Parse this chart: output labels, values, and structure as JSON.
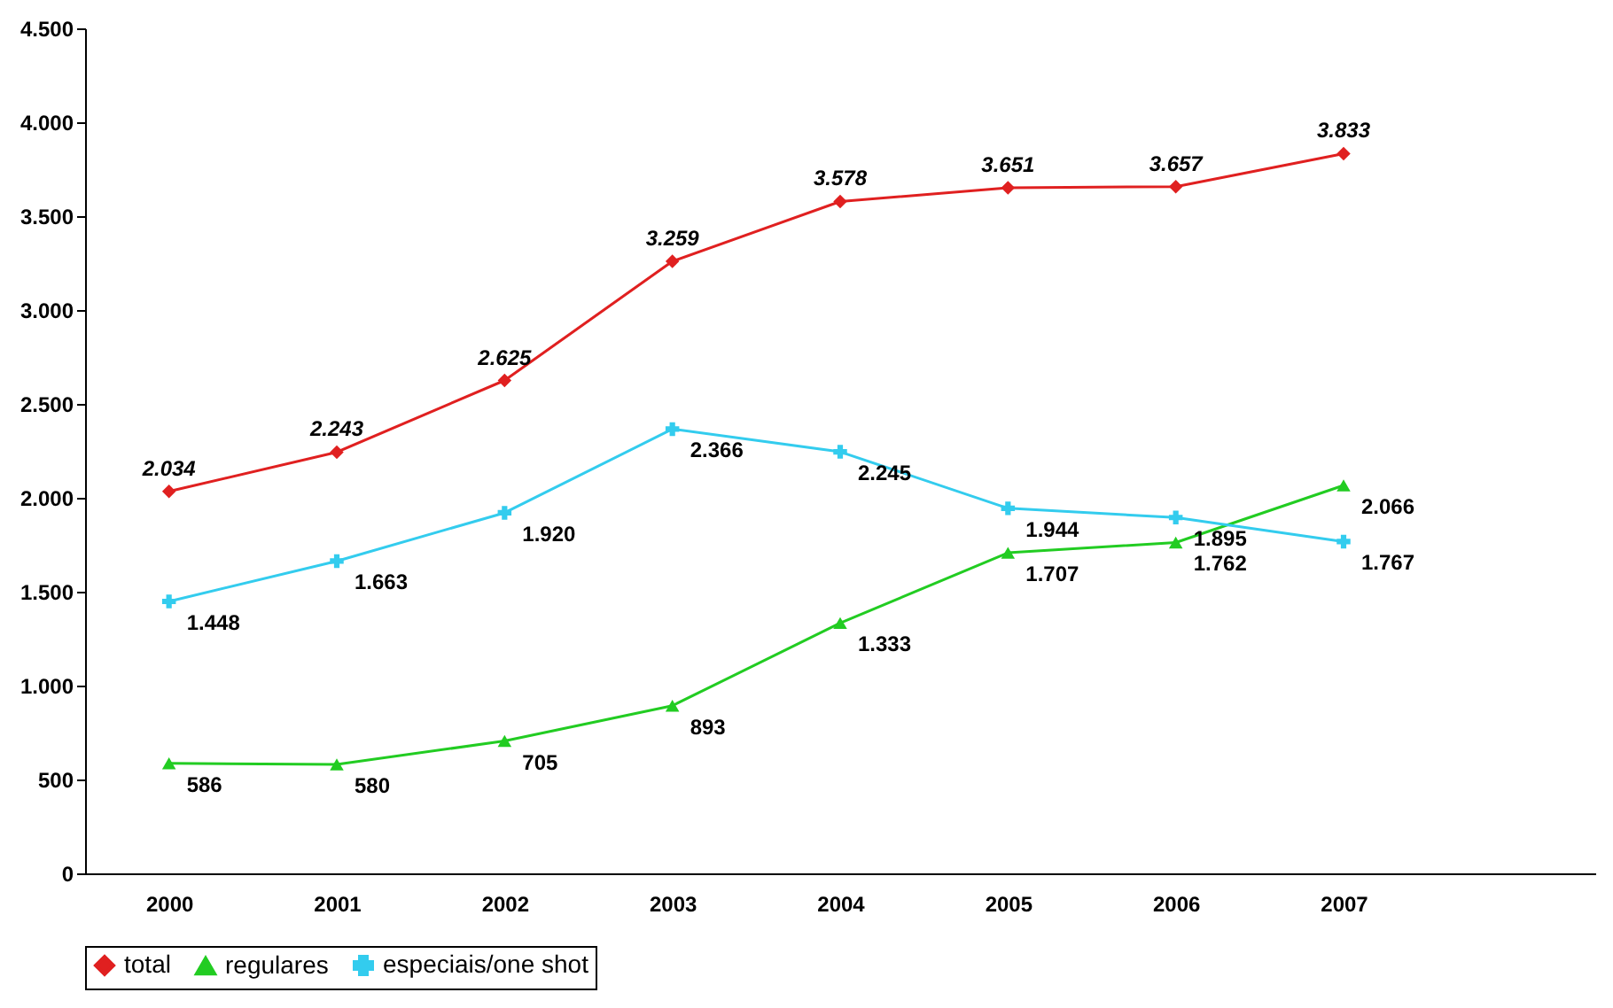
{
  "chart_data": {
    "type": "line",
    "categories": [
      "2000",
      "2001",
      "2002",
      "2003",
      "2004",
      "2005",
      "2006",
      "2007"
    ],
    "series": [
      {
        "name": "total",
        "color": "#e02020",
        "marker": "diamond",
        "values": [
          2034,
          2243,
          2625,
          3259,
          3578,
          3651,
          3657,
          3833
        ],
        "value_labels": [
          "2.034",
          "2.243",
          "2.625",
          "3.259",
          "3.578",
          "3.651",
          "3.657",
          "3.833"
        ]
      },
      {
        "name": "regulares",
        "color": "#22cc22",
        "marker": "triangle",
        "values": [
          586,
          580,
          705,
          893,
          1333,
          1707,
          1762,
          2066
        ],
        "value_labels": [
          "586",
          "580",
          "705",
          "893",
          "1.333",
          "1.707",
          "1.762",
          "2.066"
        ]
      },
      {
        "name": "especiais/one shot",
        "color": "#33ccee",
        "marker": "cross",
        "values": [
          1448,
          1663,
          1920,
          2366,
          2245,
          1944,
          1895,
          1767
        ],
        "value_labels": [
          "1.448",
          "1.663",
          "1.920",
          "2.366",
          "2.245",
          "1.944",
          "1.895",
          "1.767"
        ]
      }
    ],
    "ylim": [
      0,
      4500
    ],
    "yticks": [
      0,
      500,
      {
        "value": 1000,
        "label": "1.000"
      },
      {
        "value": 1500,
        "label": "1.500"
      },
      {
        "value": 2000,
        "label": "2.000"
      },
      {
        "value": 2500,
        "label": "2.500"
      },
      {
        "value": 3000,
        "label": "3.000"
      },
      {
        "value": 3500,
        "label": "3.500"
      },
      {
        "value": 4000,
        "label": "4.000"
      },
      {
        "value": 4500,
        "label": "4.500"
      }
    ],
    "grid": false,
    "legend": "bottom",
    "line_style": "solid"
  }
}
